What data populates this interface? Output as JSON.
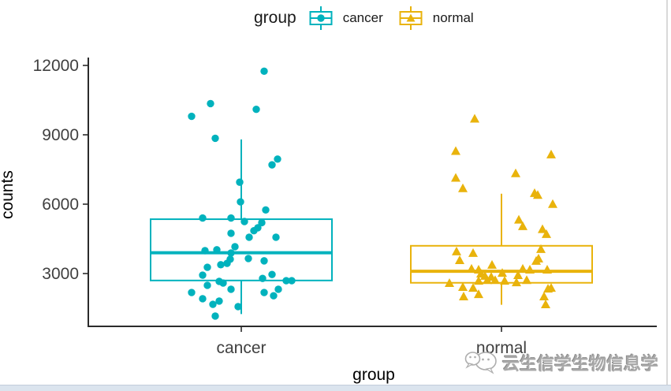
{
  "watermark": {
    "text": "云生信学生物信息学",
    "logo_icon": "wechat-icon"
  },
  "chart_data": {
    "type": "boxplot-jitter",
    "title": "",
    "xlabel": "group",
    "ylabel": "counts",
    "categories": [
      "cancer",
      "normal"
    ],
    "yticks": [
      3000,
      6000,
      9000,
      12000
    ],
    "ylim": [
      700,
      12900
    ],
    "grid": false,
    "legend": {
      "title": "group",
      "position": "top-center",
      "entries": [
        {
          "label": "cancer",
          "marker": "circle",
          "color": "#00b2bd"
        },
        {
          "label": "normal",
          "marker": "triangle",
          "color": "#e9b30c"
        }
      ]
    },
    "series": [
      {
        "name": "cancer",
        "color": "#00b2bd",
        "marker": "circle",
        "box": {
          "whisker_low": 1250,
          "q1": 2700,
          "median": 3900,
          "q3": 5350,
          "whisker_high": 8800
        },
        "points": [
          [
            29,
            11750
          ],
          [
            -39,
            10350
          ],
          [
            19,
            10100
          ],
          [
            -63,
            9800
          ],
          [
            -33,
            8850
          ],
          [
            46,
            7950
          ],
          [
            39,
            7700
          ],
          [
            -2,
            6950
          ],
          [
            -1,
            6100
          ],
          [
            31,
            5750
          ],
          [
            -49,
            5400
          ],
          [
            -13,
            5400
          ],
          [
            4,
            5250
          ],
          [
            26,
            5200
          ],
          [
            21,
            4980
          ],
          [
            16,
            4850
          ],
          [
            -13,
            4740
          ],
          [
            10,
            4570
          ],
          [
            44,
            4570
          ],
          [
            -8,
            4160
          ],
          [
            -31,
            4030
          ],
          [
            -46,
            3990
          ],
          [
            -13,
            3890
          ],
          [
            9,
            3650
          ],
          [
            -14,
            3620
          ],
          [
            29,
            3550
          ],
          [
            -18,
            3440
          ],
          [
            -26,
            3380
          ],
          [
            -43,
            3270
          ],
          [
            39,
            2960
          ],
          [
            -49,
            2930
          ],
          [
            27,
            2790
          ],
          [
            57,
            2690
          ],
          [
            64,
            2690
          ],
          [
            -28,
            2660
          ],
          [
            -23,
            2590
          ],
          [
            -43,
            2490
          ],
          [
            -13,
            2320
          ],
          [
            47,
            2320
          ],
          [
            -63,
            2180
          ],
          [
            29,
            2180
          ],
          [
            41,
            2040
          ],
          [
            -49,
            1910
          ],
          [
            -28,
            1810
          ],
          [
            -36,
            1670
          ],
          [
            -4,
            1570
          ],
          [
            -33,
            1160
          ]
        ]
      },
      {
        "name": "normal",
        "color": "#e9b30c",
        "marker": "triangle",
        "box": {
          "whisker_low": 1650,
          "q1": 2600,
          "median": 3100,
          "q3": 4200,
          "whisker_high": 6450
        },
        "points": [
          [
            -34,
            9700
          ],
          [
            -58,
            8300
          ],
          [
            63,
            8150
          ],
          [
            18,
            7340
          ],
          [
            -58,
            7140
          ],
          [
            -49,
            6690
          ],
          [
            42,
            6480
          ],
          [
            46,
            6400
          ],
          [
            65,
            6010
          ],
          [
            22,
            5330
          ],
          [
            27,
            5050
          ],
          [
            52,
            4920
          ],
          [
            57,
            4710
          ],
          [
            50,
            4060
          ],
          [
            -57,
            3960
          ],
          [
            -36,
            3890
          ],
          [
            47,
            3650
          ],
          [
            -53,
            3580
          ],
          [
            44,
            3550
          ],
          [
            -12,
            3380
          ],
          [
            -38,
            3210
          ],
          [
            27,
            3210
          ],
          [
            -29,
            3170
          ],
          [
            36,
            3170
          ],
          [
            58,
            3170
          ],
          [
            1,
            3030
          ],
          [
            -26,
            3000
          ],
          [
            21,
            2930
          ],
          [
            -21,
            2900
          ],
          [
            -13,
            2860
          ],
          [
            32,
            2720
          ],
          [
            -8,
            2720
          ],
          [
            -18,
            2720
          ],
          [
            4,
            2690
          ],
          [
            -29,
            2690
          ],
          [
            19,
            2620
          ],
          [
            -66,
            2590
          ],
          [
            -49,
            2420
          ],
          [
            -36,
            2380
          ],
          [
            63,
            2380
          ],
          [
            59,
            2350
          ],
          [
            -29,
            2110
          ],
          [
            -48,
            2010
          ],
          [
            54,
            2010
          ],
          [
            56,
            1670
          ]
        ]
      }
    ]
  }
}
